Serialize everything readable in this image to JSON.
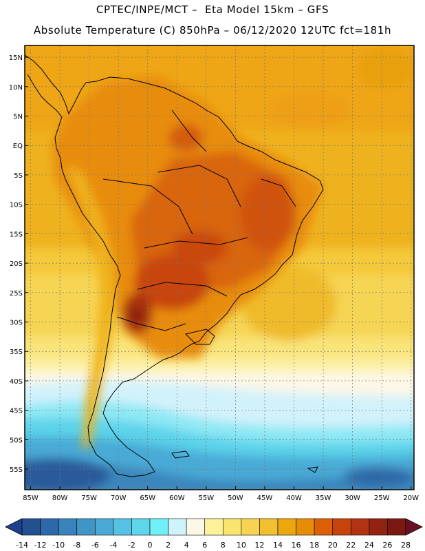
{
  "header": {
    "title_line1": "CPTEC/INPE/MCT –  Eta Model 15km – GFS",
    "title_line2": "Absolute Temperature (C) 850hPa – 06/12/2020 12UTC fct=181h"
  },
  "map": {
    "lon_range": [
      -86,
      -19.5
    ],
    "lat_range": [
      -58.5,
      17
    ],
    "lat_labels": [
      "15N",
      "10N",
      "5N",
      "EQ",
      "5S",
      "10S",
      "15S",
      "20S",
      "25S",
      "30S",
      "35S",
      "40S",
      "45S",
      "50S",
      "55S"
    ],
    "lat_values": [
      15,
      10,
      5,
      0,
      -5,
      -10,
      -15,
      -20,
      -25,
      -30,
      -35,
      -40,
      -45,
      -50,
      -55
    ],
    "lon_labels": [
      "85W",
      "80W",
      "75W",
      "70W",
      "65W",
      "60W",
      "55W",
      "50W",
      "45W",
      "40W",
      "35W",
      "30W",
      "25W",
      "20W"
    ],
    "lon_values": [
      -85,
      -80,
      -75,
      -70,
      -65,
      -60,
      -55,
      -50,
      -45,
      -40,
      -35,
      -30,
      -25,
      -20
    ],
    "gridlines": true
  },
  "colorbar": {
    "labels": [
      "-14",
      "-12",
      "-10",
      "-8",
      "-6",
      "-4",
      "-2",
      "0",
      "2",
      "4",
      "6",
      "8",
      "10",
      "12",
      "14",
      "16",
      "18",
      "20",
      "22",
      "24",
      "26",
      "28"
    ],
    "colors": [
      "#1c3f8f",
      "#24508f",
      "#2d68a8",
      "#3a82bb",
      "#3f95c4",
      "#4aa9d4",
      "#55c2e4",
      "#5dd6ea",
      "#6ff1f7",
      "#cff3fb",
      "#fdf7e7",
      "#fcf29a",
      "#f9e56e",
      "#f6d451",
      "#f0c02f",
      "#eba70d",
      "#e68c07",
      "#de6006",
      "#c8420b",
      "#b13312",
      "#922312",
      "#7b1811",
      "#6b0f22"
    ]
  }
}
